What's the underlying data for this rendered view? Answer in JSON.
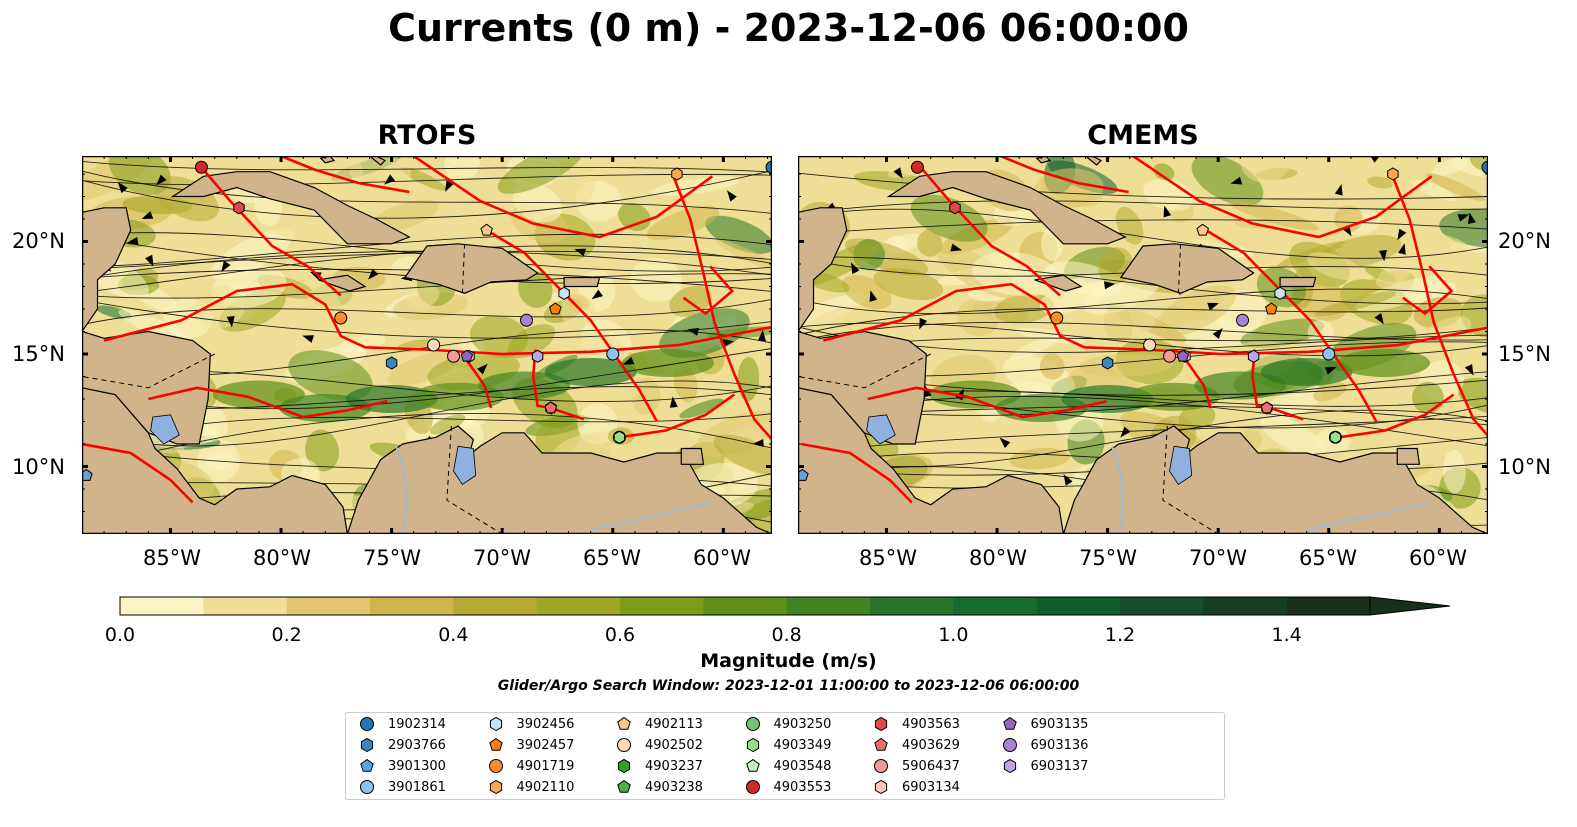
{
  "title": "Currents (0 m) - 2023-12-06 06:00:00",
  "panels": [
    {
      "title": "RTOFS"
    },
    {
      "title": "CMEMS"
    }
  ],
  "lat_labels": [
    "20°N",
    "15°N",
    "10°N"
  ],
  "lon_labels": [
    "85°W",
    "80°W",
    "75°W",
    "70°W",
    "65°W",
    "60°W"
  ],
  "extent": {
    "lon_min": -89.0,
    "lon_max": -57.8,
    "lat_min": 7.0,
    "lat_max": 23.8
  },
  "colorbar": {
    "label": "Magnitude (m/s)",
    "ticks": [
      "0.0",
      "0.2",
      "0.4",
      "0.6",
      "0.8",
      "1.0",
      "1.2",
      "1.4"
    ],
    "range": [
      0.0,
      1.5
    ],
    "extend": "max",
    "colors": [
      "#fbf5c4",
      "#efdf96",
      "#e0c66e",
      "#d1b54c",
      "#b6a935",
      "#9ea623",
      "#7f9b17",
      "#5f8f1a",
      "#418522",
      "#2a7628",
      "#156b30",
      "#0f5e2e",
      "#144d2b",
      "#173d25",
      "#1a2e1c"
    ]
  },
  "colors": {
    "land": "#d2b48c",
    "tracks": "#ff0000",
    "lakes": "#8eb1e0",
    "rivers": "#a6b8cf"
  },
  "search_window": "Glider/Argo Search Window: 2023-12-01 11:00:00 to 2023-12-06 06:00:00",
  "legend": [
    {
      "label": "1902314",
      "marker": "circle",
      "color": "#1f77b4"
    },
    {
      "label": "2903766",
      "marker": "hexagon",
      "color": "#3a86c2"
    },
    {
      "label": "3901300",
      "marker": "pentagon",
      "color": "#5fa2dd"
    },
    {
      "label": "3901861",
      "marker": "circle",
      "color": "#8ec3ee"
    },
    {
      "label": "3902456",
      "marker": "hexagon",
      "color": "#c6e2f7"
    },
    {
      "label": "3902457",
      "marker": "pentagon",
      "color": "#ff7f0e"
    },
    {
      "label": "4901719",
      "marker": "circle",
      "color": "#ff8c2e"
    },
    {
      "label": "4902110",
      "marker": "hexagon",
      "color": "#ffa652"
    },
    {
      "label": "4902113",
      "marker": "pentagon",
      "color": "#ffc58a"
    },
    {
      "label": "4902502",
      "marker": "circle",
      "color": "#ffdcb8"
    },
    {
      "label": "4903237",
      "marker": "hexagon",
      "color": "#2ca02c"
    },
    {
      "label": "4903238",
      "marker": "pentagon",
      "color": "#4cb34c"
    },
    {
      "label": "4903250",
      "marker": "circle",
      "color": "#74c476"
    },
    {
      "label": "4903349",
      "marker": "hexagon",
      "color": "#98df8a"
    },
    {
      "label": "4903548",
      "marker": "pentagon",
      "color": "#c7efc0"
    },
    {
      "label": "4903553",
      "marker": "circle",
      "color": "#d62728"
    },
    {
      "label": "4903563",
      "marker": "hexagon",
      "color": "#e0474a"
    },
    {
      "label": "4903629",
      "marker": "pentagon",
      "color": "#ea6f72"
    },
    {
      "label": "5906437",
      "marker": "circle",
      "color": "#f19a99"
    },
    {
      "label": "6903134",
      "marker": "hexagon",
      "color": "#ffc4c0"
    },
    {
      "label": "6903135",
      "marker": "pentagon",
      "color": "#9467bd"
    },
    {
      "label": "6903136",
      "marker": "circle",
      "color": "#a783d3"
    },
    {
      "label": "6903137",
      "marker": "hexagon",
      "color": "#c0a4e8"
    }
  ],
  "floats": [
    {
      "id": "1902314",
      "lon": -57.8,
      "lat": 23.3
    },
    {
      "id": "2903766",
      "lon": -75.0,
      "lat": 14.6
    },
    {
      "id": "3901300",
      "lon": -88.8,
      "lat": 9.6
    },
    {
      "id": "3901861",
      "lon": -65.0,
      "lat": 15.0
    },
    {
      "id": "3902456",
      "lon": -67.2,
      "lat": 17.7
    },
    {
      "id": "3902457",
      "lon": -67.6,
      "lat": 17.0
    },
    {
      "id": "4901719",
      "lon": -77.3,
      "lat": 16.6
    },
    {
      "id": "4902110",
      "lon": -62.1,
      "lat": 23.0
    },
    {
      "id": "4902113",
      "lon": -70.7,
      "lat": 20.5
    },
    {
      "id": "4902502",
      "lon": -73.1,
      "lat": 15.4
    },
    {
      "id": "4903237",
      "lon": -67.8,
      "lat": 12.6
    },
    {
      "id": "4903250",
      "lon": -64.7,
      "lat": 11.3
    },
    {
      "id": "4903349",
      "lon": -64.7,
      "lat": 11.3
    },
    {
      "id": "4903553",
      "lon": -83.6,
      "lat": 23.3
    },
    {
      "id": "4903563",
      "lon": -81.9,
      "lat": 21.5
    },
    {
      "id": "4903629",
      "lon": -67.8,
      "lat": 12.6
    },
    {
      "id": "5906437",
      "lon": -72.2,
      "lat": 14.9
    },
    {
      "id": "6903134",
      "lon": -71.5,
      "lat": 14.9
    },
    {
      "id": "6903135",
      "lon": -71.6,
      "lat": 14.9
    },
    {
      "id": "6903136",
      "lon": -68.9,
      "lat": 16.5
    },
    {
      "id": "6903137",
      "lon": -68.4,
      "lat": 14.9
    }
  ]
}
